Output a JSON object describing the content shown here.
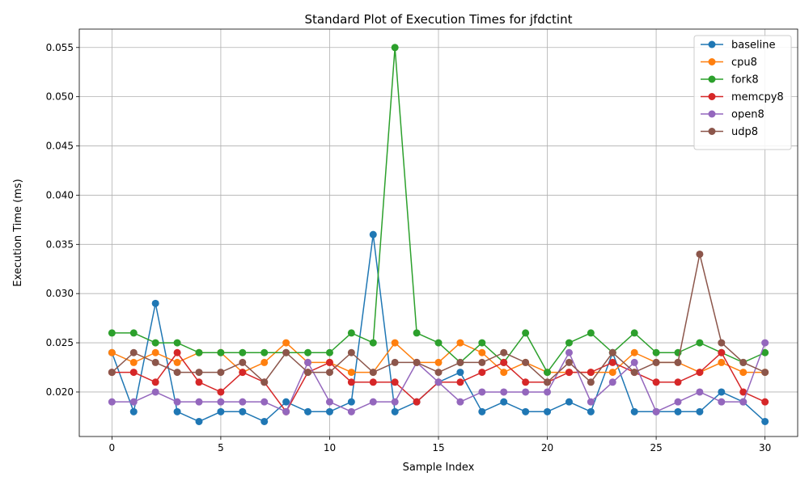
{
  "chart_data": {
    "type": "line",
    "title": "Standard Plot of Execution Times for jfdctint",
    "xlabel": "Sample Index",
    "ylabel": "Execution Time (ms)",
    "xlim": [
      -1.5,
      31.5
    ],
    "ylim": [
      0.01548,
      0.05687
    ],
    "xticks": [
      0,
      5,
      10,
      15,
      20,
      25,
      30
    ],
    "yticks": [
      0.02,
      0.025,
      0.03,
      0.035,
      0.04,
      0.045,
      0.05,
      0.055
    ],
    "ytick_labels": [
      "0.020",
      "0.025",
      "0.030",
      "0.035",
      "0.040",
      "0.045",
      "0.050",
      "0.055"
    ],
    "grid": true,
    "legend_position": "top-right",
    "x": [
      0,
      1,
      2,
      3,
      4,
      5,
      6,
      7,
      8,
      9,
      10,
      11,
      12,
      13,
      14,
      15,
      16,
      17,
      18,
      19,
      20,
      21,
      22,
      23,
      24,
      25,
      26,
      27,
      28,
      29,
      30
    ],
    "series": [
      {
        "name": "baseline",
        "color": "#1f77b4",
        "values": [
          0.024,
          0.018,
          0.029,
          0.018,
          0.017,
          0.018,
          0.018,
          0.017,
          0.019,
          0.018,
          0.018,
          0.019,
          0.036,
          0.018,
          0.019,
          0.021,
          0.022,
          0.018,
          0.019,
          0.018,
          0.018,
          0.019,
          0.018,
          0.024,
          0.018,
          0.018,
          0.018,
          0.018,
          0.02,
          0.019,
          0.017
        ]
      },
      {
        "name": "cpu8",
        "color": "#ff7f0e",
        "values": [
          0.024,
          0.023,
          0.024,
          0.023,
          0.024,
          0.024,
          0.022,
          0.023,
          0.025,
          0.023,
          0.023,
          0.022,
          0.022,
          0.025,
          0.023,
          0.023,
          0.025,
          0.024,
          0.022,
          0.023,
          0.022,
          0.022,
          0.022,
          0.022,
          0.024,
          0.023,
          0.023,
          0.022,
          0.023,
          0.022,
          0.022
        ]
      },
      {
        "name": "fork8",
        "color": "#2ca02c",
        "values": [
          0.026,
          0.026,
          0.025,
          0.025,
          0.024,
          0.024,
          0.024,
          0.024,
          0.024,
          0.024,
          0.024,
          0.026,
          0.025,
          0.055,
          0.026,
          0.025,
          0.023,
          0.025,
          0.023,
          0.026,
          0.022,
          0.025,
          0.026,
          0.024,
          0.026,
          0.024,
          0.024,
          0.025,
          0.024,
          0.023,
          0.024
        ]
      },
      {
        "name": "memcpy8",
        "color": "#d62728",
        "values": [
          0.022,
          0.022,
          0.021,
          0.024,
          0.021,
          0.02,
          0.022,
          0.021,
          0.018,
          0.022,
          0.023,
          0.021,
          0.021,
          0.021,
          0.019,
          0.021,
          0.021,
          0.022,
          0.023,
          0.021,
          0.021,
          0.022,
          0.022,
          0.023,
          0.022,
          0.021,
          0.021,
          0.022,
          0.024,
          0.02,
          0.019
        ]
      },
      {
        "name": "open8",
        "color": "#9467bd",
        "values": [
          0.019,
          0.019,
          0.02,
          0.019,
          0.019,
          0.019,
          0.019,
          0.019,
          0.018,
          0.023,
          0.019,
          0.018,
          0.019,
          0.019,
          0.023,
          0.021,
          0.019,
          0.02,
          0.02,
          0.02,
          0.02,
          0.024,
          0.019,
          0.021,
          0.023,
          0.018,
          0.019,
          0.02,
          0.019,
          0.019,
          0.025
        ]
      },
      {
        "name": "udp8",
        "color": "#8c564b",
        "values": [
          0.022,
          0.024,
          0.023,
          0.022,
          0.022,
          0.022,
          0.023,
          0.021,
          0.024,
          0.022,
          0.022,
          0.024,
          0.022,
          0.023,
          0.023,
          0.022,
          0.023,
          0.023,
          0.024,
          0.023,
          0.021,
          0.023,
          0.021,
          0.024,
          0.022,
          0.023,
          0.023,
          0.034,
          0.025,
          0.023,
          0.022
        ]
      }
    ]
  }
}
